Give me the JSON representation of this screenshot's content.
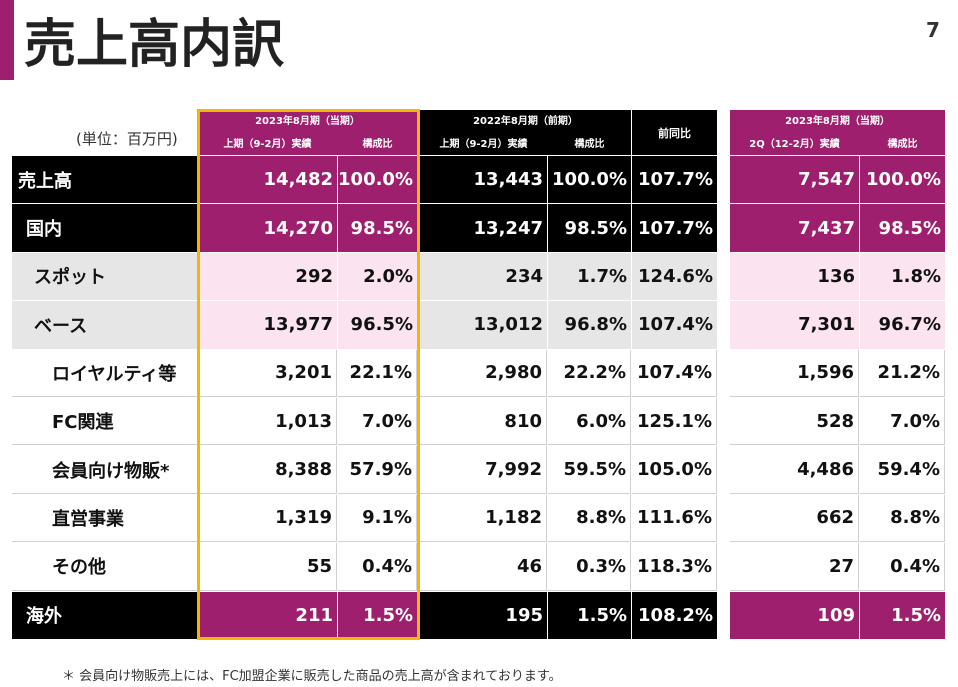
{
  "header": {
    "title": "売上高内訳",
    "page": "7",
    "unit": "(単位：百万円)"
  },
  "table": {
    "groups": [
      {
        "title": "2023年8月期（当期）",
        "columns": [
          "上期（9-2月）実績",
          "構成比"
        ]
      },
      {
        "title": "2022年8月期（前期）",
        "columns": [
          "上期（9-2月）実績",
          "構成比"
        ]
      },
      {
        "title": "前同比",
        "columns": []
      },
      {
        "title": "2023年8月期（当期）",
        "columns": [
          "2Q（12-2月）実績",
          "構成比"
        ]
      }
    ],
    "rows": [
      {
        "label": "売上高",
        "cells": [
          "14,482",
          "100.0%",
          "13,443",
          "100.0%",
          "107.7%",
          "7,547",
          "100.0%"
        ]
      },
      {
        "label": "国内",
        "cells": [
          "14,270",
          "98.5%",
          "13,247",
          "98.5%",
          "107.7%",
          "7,437",
          "98.5%"
        ]
      },
      {
        "label": "スポット",
        "cells": [
          "292",
          "2.0%",
          "234",
          "1.7%",
          "124.6%",
          "136",
          "1.8%"
        ]
      },
      {
        "label": "ベース",
        "cells": [
          "13,977",
          "96.5%",
          "13,012",
          "96.8%",
          "107.4%",
          "7,301",
          "96.7%"
        ]
      },
      {
        "label": "ロイヤルティ等",
        "cells": [
          "3,201",
          "22.1%",
          "2,980",
          "22.2%",
          "107.4%",
          "1,596",
          "21.2%"
        ]
      },
      {
        "label": "FC関連",
        "cells": [
          "1,013",
          "7.0%",
          "810",
          "6.0%",
          "125.1%",
          "528",
          "7.0%"
        ]
      },
      {
        "label": "会員向け物販*",
        "cells": [
          "8,388",
          "57.9%",
          "7,992",
          "59.5%",
          "105.0%",
          "4,486",
          "59.4%"
        ]
      },
      {
        "label": "直営事業",
        "cells": [
          "1,319",
          "9.1%",
          "1,182",
          "8.8%",
          "111.6%",
          "662",
          "8.8%"
        ]
      },
      {
        "label": "その他",
        "cells": [
          "55",
          "0.4%",
          "46",
          "0.3%",
          "118.3%",
          "27",
          "0.4%"
        ]
      },
      {
        "label": "海外",
        "cells": [
          "211",
          "1.5%",
          "195",
          "1.5%",
          "108.2%",
          "109",
          "1.5%"
        ]
      }
    ]
  },
  "footnote": "＊ 会員向け物販売上には、FC加盟企業に販売した商品の売上高が含まれております。"
}
